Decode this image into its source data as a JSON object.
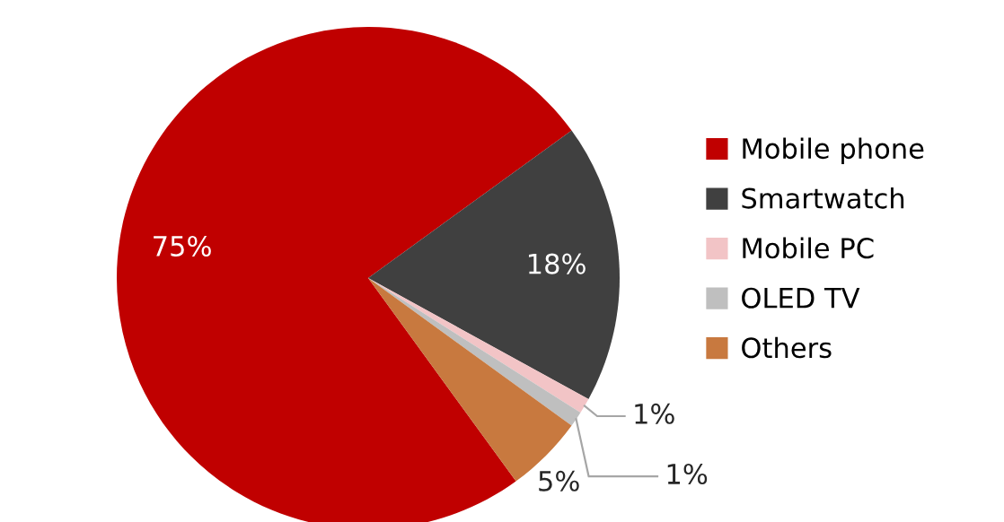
{
  "chart_data": {
    "type": "pie",
    "categories": [
      "Mobile phone",
      "Smartwatch",
      "Mobile PC",
      "OLED TV",
      "Others"
    ],
    "values": [
      75,
      18,
      1,
      1,
      5
    ],
    "colors": [
      "#c00000",
      "#404040",
      "#f2c4c6",
      "#bfbfbf",
      "#c8793f"
    ],
    "value_labels": [
      "75%",
      "18%",
      "1%",
      "1%",
      "5%"
    ],
    "legend": "right"
  }
}
